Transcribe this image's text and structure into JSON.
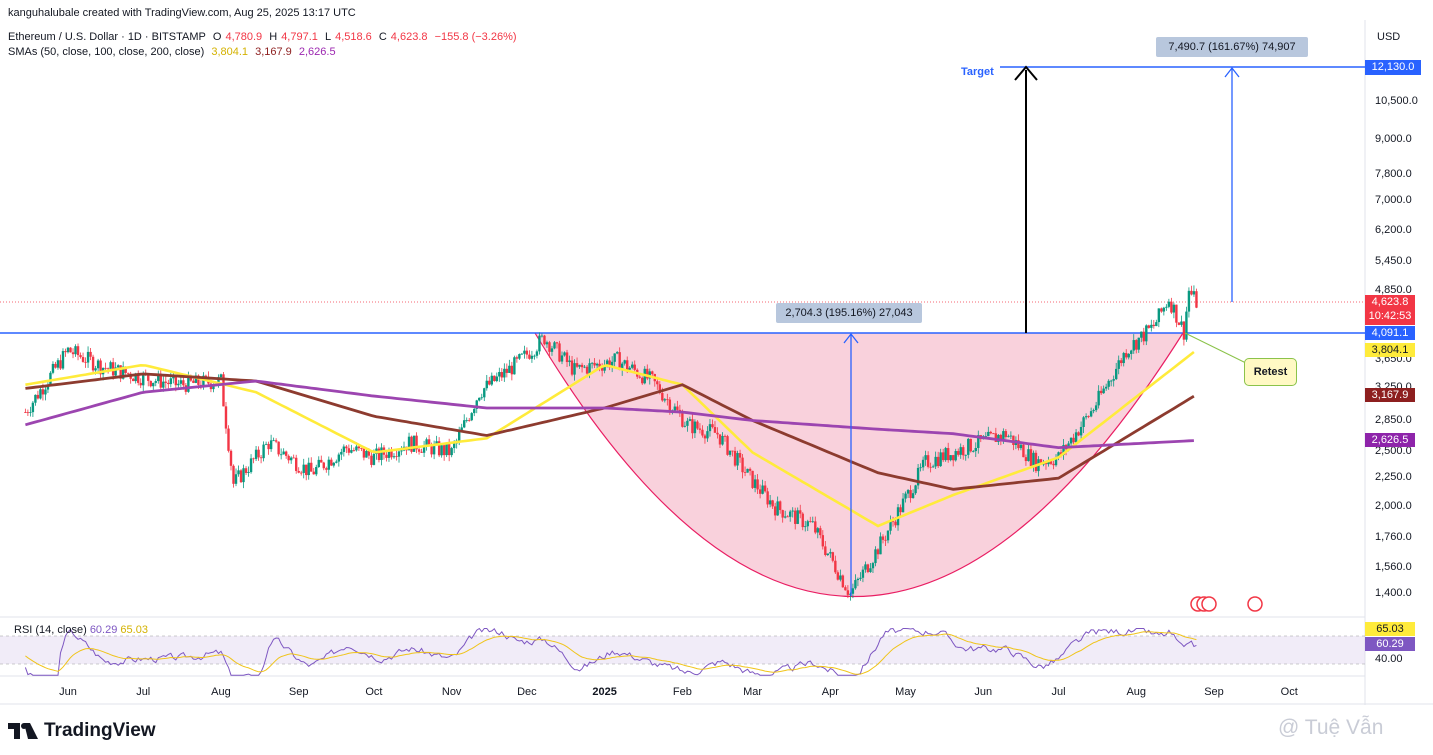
{
  "header": {
    "author_line": "kanguhalubale created with TradingView.com, Aug 25, 2025 13:17 UTC",
    "symbol": "Ethereum / U.S. Dollar · 1D · BITSTAMP",
    "ohlc": {
      "o_label": "O",
      "o": "4,780.9",
      "h_label": "H",
      "h": "4,797.1",
      "l_label": "L",
      "l": "4,518.6",
      "c_label": "C",
      "c": "4,623.8",
      "change": "−155.8 (−3.26%)"
    },
    "sma_label": "SMAs (50, close, 100, close, 200, close)",
    "sma_values": [
      "3,804.1",
      "3,167.9",
      "2,626.5"
    ],
    "currency": "USD"
  },
  "annotations": {
    "target_label": "Target",
    "measure_top": "7,490.7 (161.67%) 74,907",
    "measure_mid": "2,704.3 (195.16%) 27,043",
    "retest_label": "Retest"
  },
  "rsi": {
    "label": "RSI (14, close)",
    "value": "60.29",
    "ma_value": "65.03",
    "axis_label": "40.00",
    "tag_top": "65.03",
    "tag_val": "60.29"
  },
  "price_tags": {
    "target": "12,130.0",
    "last": "4,623.8",
    "countdown": "10:42:53",
    "neckline": "4,091.1",
    "sma50": "3,804.1",
    "sma100": "3,167.9",
    "sma200": "2,626.5"
  },
  "colors": {
    "up": "#089981",
    "down": "#f23645",
    "sma50": "#ffeb3b",
    "sma100": "#8d3b2f",
    "sma200": "#9c45b0",
    "neckline": "#2962ff",
    "cup": "#f8c6d3",
    "cup_line": "#e91e63"
  },
  "footer": {
    "brand": "TradingView",
    "watermark": "@ Tuệ Vẫn"
  },
  "chart_data": {
    "type": "line",
    "title": "Ethereum / U.S. Dollar · 1D · BITSTAMP",
    "y_scale": "log",
    "y_ticks": [
      12130,
      10500,
      9000,
      7800,
      7000,
      6200,
      5450,
      4850,
      3650,
      3250,
      2850,
      2500,
      2250,
      2000,
      1760,
      1560,
      1400
    ],
    "y_tick_labels": [
      "12,130.0",
      "10,500.0",
      "9,000.0",
      "7,800.0",
      "7,000.0",
      "6,200.0",
      "5,450.0",
      "4,850.0",
      "3,650.0",
      "3,250.0",
      "2,850.0",
      "2,500.0",
      "2,250.0",
      "2,000.0",
      "1,760.0",
      "1,560.0",
      "1,400.0"
    ],
    "x_tick_labels": [
      "Jun",
      "Jul",
      "Aug",
      "Sep",
      "Oct",
      "Nov",
      "Dec",
      "2025",
      "Feb",
      "Mar",
      "Apr",
      "May",
      "Jun",
      "Jul",
      "Aug",
      "Sep",
      "Oct"
    ],
    "price": {
      "x": [
        "2024-05-15",
        "2024-06-01",
        "2024-06-15",
        "2024-07-01",
        "2024-07-15",
        "2024-08-01",
        "2024-08-06",
        "2024-08-20",
        "2024-09-06",
        "2024-09-20",
        "2024-10-01",
        "2024-10-15",
        "2024-11-01",
        "2024-11-12",
        "2024-11-27",
        "2024-12-08",
        "2024-12-20",
        "2025-01-06",
        "2025-01-20",
        "2025-02-03",
        "2025-02-15",
        "2025-02-28",
        "2025-03-10",
        "2025-03-25",
        "2025-04-09",
        "2025-04-22",
        "2025-05-09",
        "2025-05-25",
        "2025-06-10",
        "2025-06-22",
        "2025-07-01",
        "2025-07-15",
        "2025-07-28",
        "2025-08-08",
        "2025-08-14",
        "2025-08-20",
        "2025-08-22",
        "2025-08-25"
      ],
      "y": [
        2950,
        3800,
        3550,
        3400,
        3300,
        3350,
        2200,
        2600,
        2300,
        2550,
        2450,
        2600,
        2500,
        3200,
        3600,
        4000,
        3500,
        3650,
        3350,
        2800,
        2700,
        2250,
        2000,
        1850,
        1400,
        1750,
        2400,
        2550,
        2700,
        2400,
        2450,
        3000,
        3800,
        4200,
        4700,
        4100,
        4850,
        4623.8
      ]
    },
    "series": [
      {
        "name": "SMA 50",
        "x": [
          "2024-05-15",
          "2024-07-01",
          "2024-08-15",
          "2024-10-01",
          "2024-11-15",
          "2025-01-01",
          "2025-02-01",
          "2025-03-01",
          "2025-04-20",
          "2025-05-20",
          "2025-07-01",
          "2025-08-25"
        ],
        "y": [
          3300,
          3580,
          3200,
          2500,
          2650,
          3580,
          3300,
          2500,
          1850,
          2100,
          2450,
          3804.1
        ]
      },
      {
        "name": "SMA 100",
        "x": [
          "2024-05-15",
          "2024-07-01",
          "2024-08-15",
          "2024-10-01",
          "2024-11-15",
          "2025-01-01",
          "2025-02-01",
          "2025-03-01",
          "2025-04-20",
          "2025-05-20",
          "2025-07-01",
          "2025-08-25"
        ],
        "y": [
          3250,
          3450,
          3350,
          2900,
          2680,
          3000,
          3300,
          2850,
          2300,
          2150,
          2250,
          3167.9
        ]
      },
      {
        "name": "SMA 200",
        "x": [
          "2024-05-15",
          "2024-07-01",
          "2024-08-15",
          "2024-10-01",
          "2024-11-15",
          "2025-01-01",
          "2025-02-01",
          "2025-03-01",
          "2025-04-20",
          "2025-05-20",
          "2025-07-01",
          "2025-08-25"
        ],
        "y": [
          2800,
          3200,
          3350,
          3150,
          3000,
          3000,
          2950,
          2850,
          2750,
          2700,
          2550,
          2626.5
        ]
      }
    ],
    "neckline": 4091.1,
    "target": 12130,
    "rsi": {
      "name": "RSI (14, close)",
      "last": 60.29,
      "ma": 65.03
    }
  }
}
